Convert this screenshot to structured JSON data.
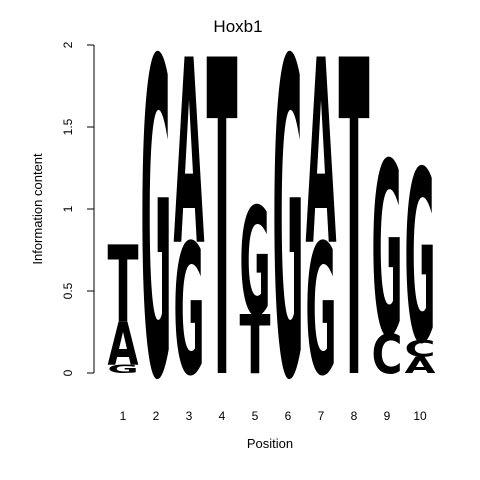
{
  "chart_data": {
    "type": "sequence-logo",
    "title": "Hoxb1",
    "xlabel": "Position",
    "ylabel": "Information content",
    "ylim": [
      0,
      2
    ],
    "yticks": [
      0,
      0.5,
      1,
      1.5,
      2
    ],
    "ytick_labels": [
      "0",
      "0.5",
      "1",
      "1.5",
      "2"
    ],
    "positions": [
      "1",
      "2",
      "3",
      "4",
      "5",
      "6",
      "7",
      "8",
      "9",
      "10"
    ],
    "colors": {
      "A": "#00ee00",
      "C": "#0000ee",
      "G": "#ffa500",
      "T": "#ff0000"
    },
    "columns": [
      {
        "position": "1",
        "letters": [
          {
            "base": "G",
            "height": 0.05
          },
          {
            "base": "A",
            "height": 0.26
          },
          {
            "base": "T",
            "height": 0.47
          }
        ]
      },
      {
        "position": "2",
        "letters": [
          {
            "base": "G",
            "height": 1.93
          }
        ]
      },
      {
        "position": "3",
        "letters": [
          {
            "base": "G",
            "height": 0.8
          },
          {
            "base": "A",
            "height": 1.13
          }
        ]
      },
      {
        "position": "4",
        "letters": [
          {
            "base": "T",
            "height": 1.93
          }
        ]
      },
      {
        "position": "5",
        "letters": [
          {
            "base": "T",
            "height": 0.36
          },
          {
            "base": "G",
            "height": 0.66
          }
        ]
      },
      {
        "position": "6",
        "letters": [
          {
            "base": "G",
            "height": 1.93
          }
        ]
      },
      {
        "position": "7",
        "letters": [
          {
            "base": "G",
            "height": 0.8
          },
          {
            "base": "A",
            "height": 1.13
          }
        ]
      },
      {
        "position": "8",
        "letters": [
          {
            "base": "T",
            "height": 1.93
          }
        ]
      },
      {
        "position": "9",
        "letters": [
          {
            "base": "C",
            "height": 0.24
          },
          {
            "base": "G",
            "height": 1.06
          }
        ]
      },
      {
        "position": "10",
        "letters": [
          {
            "base": "A",
            "height": 0.1
          },
          {
            "base": "C",
            "height": 0.1
          },
          {
            "base": "G",
            "height": 1.05
          }
        ]
      }
    ]
  }
}
